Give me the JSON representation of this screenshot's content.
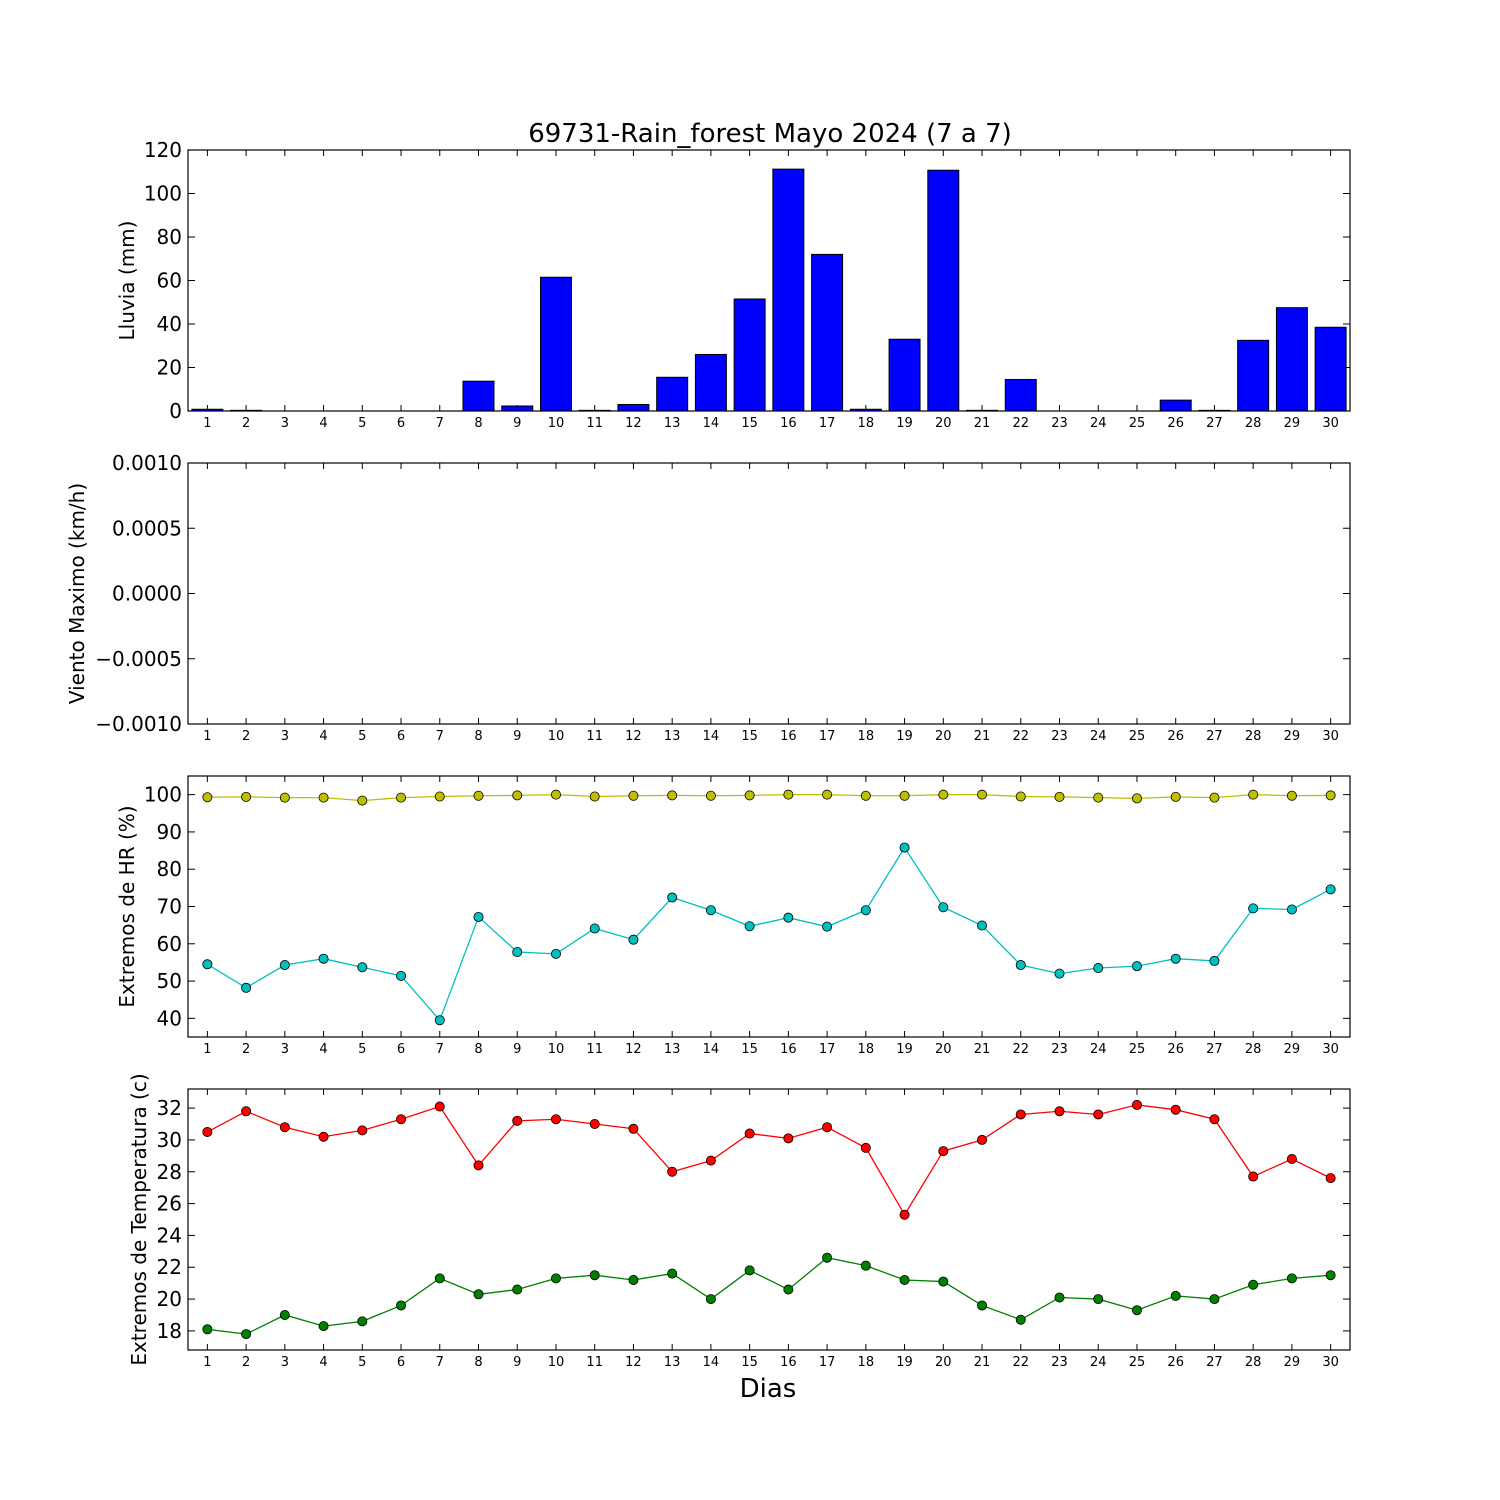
{
  "figure": {
    "title": "69731-Rain_forest Mayo 2024  (7 a 7)",
    "xlabel": "Dias"
  },
  "chart_data": [
    {
      "type": "bar",
      "id": "rain",
      "ylabel": "Lluvia (mm)",
      "ylim": [
        0,
        120
      ],
      "yticks": [
        "0",
        "20",
        "40",
        "60",
        "80",
        "100",
        "120"
      ],
      "ytick_values": [
        0,
        20,
        40,
        60,
        80,
        100,
        120
      ],
      "categories": [
        "1",
        "2",
        "3",
        "4",
        "5",
        "6",
        "7",
        "8",
        "9",
        "10",
        "11",
        "12",
        "13",
        "14",
        "15",
        "16",
        "17",
        "18",
        "19",
        "20",
        "21",
        "22",
        "23",
        "24",
        "25",
        "26",
        "27",
        "28",
        "29",
        "30"
      ],
      "series": [
        {
          "color": "#0000ff",
          "values": [
            0.8,
            0.3,
            0,
            0,
            0,
            0,
            0,
            13.7,
            2.3,
            61.5,
            0.3,
            3.0,
            15.5,
            26.0,
            51.5,
            111.2,
            72.0,
            0.8,
            33.0,
            110.7,
            0.3,
            14.5,
            0,
            0,
            0,
            5.0,
            0.3,
            32.5,
            47.5,
            38.5
          ]
        }
      ]
    },
    {
      "type": "line",
      "id": "wind",
      "ylabel": "Viento Maximo (km/h)",
      "ylim": [
        -0.001,
        0.001
      ],
      "yticks": [
        "−0.0010",
        "−0.0005",
        "0.0000",
        "0.0005",
        "0.0010"
      ],
      "ytick_values": [
        -0.001,
        -0.0005,
        0,
        0.0005,
        0.001
      ],
      "categories": [
        "1",
        "2",
        "3",
        "4",
        "5",
        "6",
        "7",
        "8",
        "9",
        "10",
        "11",
        "12",
        "13",
        "14",
        "15",
        "16",
        "17",
        "18",
        "19",
        "20",
        "21",
        "22",
        "23",
        "24",
        "25",
        "26",
        "27",
        "28",
        "29",
        "30"
      ],
      "series": []
    },
    {
      "type": "line",
      "id": "humidity",
      "ylabel": "Extremos de HR (%)",
      "ylim": [
        35,
        105
      ],
      "yticks": [
        "40",
        "50",
        "60",
        "70",
        "80",
        "90",
        "100"
      ],
      "ytick_values": [
        40,
        50,
        60,
        70,
        80,
        90,
        100
      ],
      "categories": [
        "1",
        "2",
        "3",
        "4",
        "5",
        "6",
        "7",
        "8",
        "9",
        "10",
        "11",
        "12",
        "13",
        "14",
        "15",
        "16",
        "17",
        "18",
        "19",
        "20",
        "21",
        "22",
        "23",
        "24",
        "25",
        "26",
        "27",
        "28",
        "29",
        "30"
      ],
      "series": [
        {
          "color": "#bfbf00",
          "values": [
            99.3,
            99.4,
            99.2,
            99.2,
            98.4,
            99.2,
            99.5,
            99.7,
            99.8,
            100.0,
            99.5,
            99.7,
            99.8,
            99.7,
            99.8,
            100.0,
            100.0,
            99.7,
            99.7,
            100.0,
            100.0,
            99.5,
            99.4,
            99.2,
            99.0,
            99.4,
            99.2,
            100.0,
            99.7,
            99.8
          ]
        },
        {
          "color": "#00bfbf",
          "values": [
            54.5,
            48.2,
            54.3,
            56.0,
            53.7,
            51.4,
            39.5,
            67.2,
            57.8,
            57.3,
            64.1,
            61.1,
            72.4,
            69.0,
            64.7,
            67.0,
            64.6,
            69.0,
            85.8,
            69.8,
            64.9,
            54.3,
            52.0,
            53.5,
            54.0,
            56.0,
            55.4,
            69.5,
            69.2,
            74.6
          ]
        }
      ]
    },
    {
      "type": "line",
      "id": "temperature",
      "ylabel": "Extremos de Temperatura (c)",
      "ylim": [
        16.8,
        33.2
      ],
      "yticks": [
        "18",
        "20",
        "22",
        "24",
        "26",
        "28",
        "30",
        "32"
      ],
      "ytick_values": [
        18,
        20,
        22,
        24,
        26,
        28,
        30,
        32
      ],
      "categories": [
        "1",
        "2",
        "3",
        "4",
        "5",
        "6",
        "7",
        "8",
        "9",
        "10",
        "11",
        "12",
        "13",
        "14",
        "15",
        "16",
        "17",
        "18",
        "19",
        "20",
        "21",
        "22",
        "23",
        "24",
        "25",
        "26",
        "27",
        "28",
        "29",
        "30"
      ],
      "series": [
        {
          "color": "#ff0000",
          "values": [
            30.5,
            31.8,
            30.8,
            30.2,
            30.6,
            31.3,
            32.1,
            28.4,
            31.2,
            31.3,
            31.0,
            30.7,
            28.0,
            28.7,
            30.4,
            30.1,
            30.8,
            29.5,
            25.3,
            29.3,
            30.0,
            31.6,
            31.8,
            31.6,
            32.2,
            31.9,
            31.3,
            27.7,
            28.8,
            27.6
          ]
        },
        {
          "color": "#008000",
          "values": [
            18.1,
            17.8,
            19.0,
            18.3,
            18.6,
            19.6,
            21.3,
            20.3,
            20.6,
            21.3,
            21.5,
            21.2,
            21.6,
            20.0,
            21.8,
            20.6,
            22.6,
            22.1,
            21.2,
            21.1,
            19.6,
            18.7,
            20.1,
            20.0,
            19.3,
            20.2,
            20.0,
            20.9,
            21.3,
            21.5
          ]
        }
      ]
    }
  ]
}
